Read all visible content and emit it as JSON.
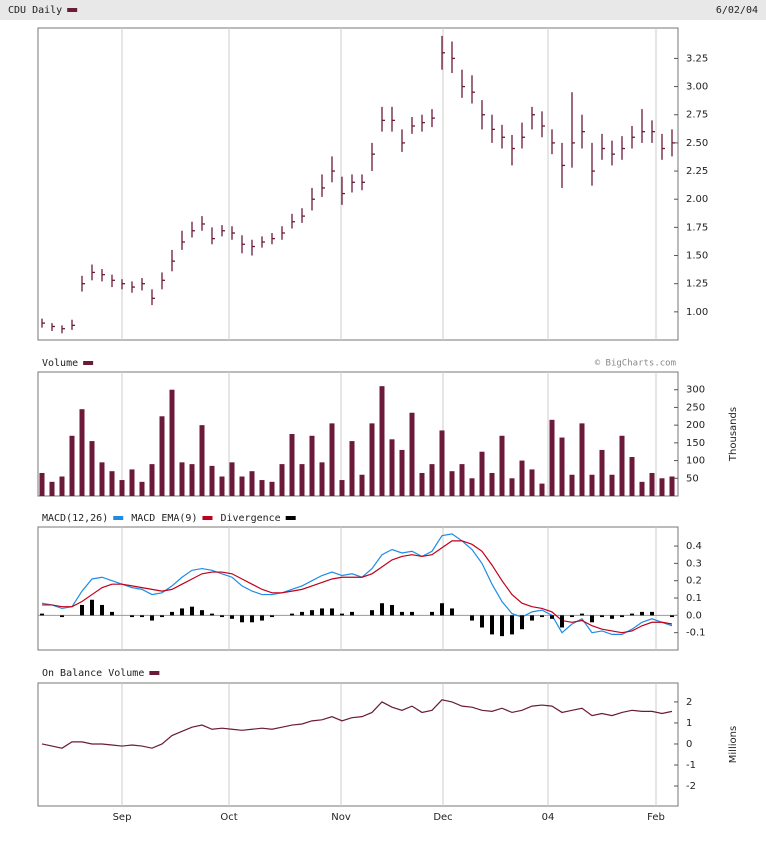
{
  "header": {
    "symbol": "CDU Daily",
    "date": "6/02/04"
  },
  "credit": "© BigCharts.com",
  "x_axis": {
    "xlim": [
      -0.4,
      63.6
    ],
    "xticks": [
      {
        "value": 8,
        "label": "Sep"
      },
      {
        "value": 18.7,
        "label": "Oct"
      },
      {
        "value": 29.9,
        "label": "Nov"
      },
      {
        "value": 40.1,
        "label": "Dec"
      },
      {
        "value": 50.6,
        "label": "04"
      },
      {
        "value": 61.4,
        "label": "Feb"
      }
    ]
  },
  "chart_data": [
    {
      "type": "ohlc",
      "series": [
        {
          "name": "CDU Daily",
          "color": "#6b1a3a",
          "high": [
            0.94,
            0.9,
            0.88,
            0.93,
            1.32,
            1.42,
            1.38,
            1.33,
            1.29,
            1.27,
            1.3,
            1.2,
            1.35,
            1.55,
            1.72,
            1.8,
            1.85,
            1.75,
            1.77,
            1.76,
            1.68,
            1.64,
            1.67,
            1.7,
            1.76,
            1.87,
            1.92,
            2.1,
            2.22,
            2.38,
            2.2,
            2.22,
            2.22,
            2.5,
            2.82,
            2.82,
            2.62,
            2.73,
            2.75,
            2.8,
            3.45,
            3.4,
            3.15,
            3.1,
            2.88,
            2.75,
            2.66,
            2.57,
            2.68,
            2.82,
            2.78,
            2.62,
            2.5,
            2.95,
            2.75,
            2.5,
            2.58,
            2.52,
            2.56,
            2.65,
            2.8,
            2.7,
            2.58,
            2.62
          ],
          "low": [
            0.86,
            0.83,
            0.81,
            0.84,
            1.18,
            1.28,
            1.27,
            1.22,
            1.2,
            1.17,
            1.19,
            1.06,
            1.2,
            1.36,
            1.55,
            1.66,
            1.72,
            1.6,
            1.67,
            1.64,
            1.52,
            1.5,
            1.57,
            1.6,
            1.64,
            1.74,
            1.79,
            1.9,
            2.02,
            2.15,
            1.95,
            2.06,
            2.08,
            2.25,
            2.6,
            2.6,
            2.42,
            2.58,
            2.6,
            2.64,
            3.15,
            3.12,
            2.9,
            2.85,
            2.62,
            2.5,
            2.45,
            2.3,
            2.45,
            2.62,
            2.55,
            2.4,
            2.1,
            2.28,
            2.45,
            2.12,
            2.35,
            2.3,
            2.35,
            2.45,
            2.5,
            2.5,
            2.35,
            2.38
          ],
          "close": [
            0.9,
            0.87,
            0.85,
            0.88,
            1.25,
            1.35,
            1.33,
            1.28,
            1.25,
            1.22,
            1.25,
            1.12,
            1.28,
            1.45,
            1.62,
            1.72,
            1.78,
            1.65,
            1.72,
            1.7,
            1.6,
            1.58,
            1.62,
            1.65,
            1.7,
            1.8,
            1.85,
            2,
            2.1,
            2.25,
            2.05,
            2.15,
            2.15,
            2.4,
            2.7,
            2.7,
            2.5,
            2.65,
            2.68,
            2.72,
            3.3,
            3.25,
            3,
            2.95,
            2.75,
            2.62,
            2.55,
            2.45,
            2.55,
            2.75,
            2.65,
            2.5,
            2.3,
            2.5,
            2.6,
            2.25,
            2.45,
            2.4,
            2.45,
            2.55,
            2.6,
            2.6,
            2.45,
            2.5
          ]
        }
      ],
      "ylim": [
        0.75,
        3.52
      ],
      "yticks": [
        {
          "value": 1,
          "label": "1.00"
        },
        1.25,
        {
          "value": 1.5,
          "label": "1.50"
        },
        1.75,
        {
          "value": 2,
          "label": "2.00"
        },
        2.25,
        {
          "value": 2.5,
          "label": "2.50"
        },
        2.75,
        {
          "value": 3,
          "label": "3.00"
        },
        3.25
      ]
    },
    {
      "type": "bar",
      "series": [
        {
          "name": "Volume",
          "color": "#6b1a3a",
          "values": [
            65,
            40,
            55,
            170,
            245,
            155,
            95,
            70,
            45,
            75,
            40,
            90,
            225,
            300,
            95,
            90,
            200,
            85,
            55,
            95,
            55,
            70,
            45,
            40,
            90,
            175,
            90,
            170,
            95,
            205,
            45,
            155,
            60,
            205,
            310,
            160,
            130,
            235,
            65,
            90,
            185,
            70,
            90,
            50,
            125,
            65,
            170,
            50,
            100,
            75,
            35,
            215,
            165,
            60,
            205,
            60,
            130,
            60,
            170,
            110,
            40,
            65,
            50,
            55
          ]
        }
      ],
      "ylim": [
        0,
        350
      ],
      "yticks": [
        50,
        100,
        150,
        200,
        250,
        300
      ],
      "ylabel": "Thousands"
    },
    {
      "type": "line",
      "series": [
        {
          "name": "MACD(12,26)",
          "color": "#1e8ce6",
          "values": [
            0.07,
            0.06,
            0.04,
            0.05,
            0.14,
            0.21,
            0.22,
            0.2,
            0.18,
            0.16,
            0.15,
            0.12,
            0.13,
            0.17,
            0.22,
            0.26,
            0.27,
            0.26,
            0.24,
            0.22,
            0.17,
            0.14,
            0.12,
            0.12,
            0.13,
            0.15,
            0.17,
            0.2,
            0.23,
            0.25,
            0.23,
            0.24,
            0.22,
            0.27,
            0.35,
            0.38,
            0.36,
            0.37,
            0.34,
            0.37,
            0.46,
            0.47,
            0.43,
            0.38,
            0.3,
            0.18,
            0.08,
            0.01,
            -0.01,
            0.02,
            0.03,
            0,
            -0.1,
            -0.05,
            -0.02,
            -0.1,
            -0.09,
            -0.11,
            -0.11,
            -0.08,
            -0.04,
            -0.02,
            -0.04,
            -0.06
          ]
        },
        {
          "name": "MACD EMA(9)",
          "color": "#c0001a",
          "values": [
            0.06,
            0.06,
            0.05,
            0.05,
            0.08,
            0.12,
            0.16,
            0.18,
            0.18,
            0.17,
            0.16,
            0.15,
            0.14,
            0.15,
            0.18,
            0.21,
            0.24,
            0.25,
            0.25,
            0.24,
            0.21,
            0.18,
            0.15,
            0.13,
            0.13,
            0.14,
            0.15,
            0.17,
            0.19,
            0.21,
            0.22,
            0.22,
            0.22,
            0.24,
            0.28,
            0.32,
            0.34,
            0.35,
            0.34,
            0.35,
            0.39,
            0.43,
            0.43,
            0.41,
            0.37,
            0.29,
            0.2,
            0.12,
            0.07,
            0.05,
            0.04,
            0.02,
            -0.03,
            -0.04,
            -0.03,
            -0.06,
            -0.08,
            -0.09,
            -0.1,
            -0.09,
            -0.06,
            -0.04,
            -0.04,
            -0.05
          ]
        },
        {
          "name": "Divergence",
          "color": "#000000",
          "type": "bar",
          "values": [
            0.01,
            0,
            -0.01,
            0,
            0.06,
            0.09,
            0.06,
            0.02,
            0,
            -0.01,
            -0.01,
            -0.03,
            -0.01,
            0.02,
            0.04,
            0.05,
            0.03,
            0.01,
            -0.01,
            -0.02,
            -0.04,
            -0.04,
            -0.03,
            -0.01,
            0,
            0.01,
            0.02,
            0.03,
            0.04,
            0.04,
            0.01,
            0.02,
            0,
            0.03,
            0.07,
            0.06,
            0.02,
            0.02,
            0,
            0.02,
            0.07,
            0.04,
            0,
            -0.03,
            -0.07,
            -0.11,
            -0.12,
            -0.11,
            -0.08,
            -0.03,
            -0.01,
            -0.02,
            -0.07,
            -0.01,
            0.01,
            -0.04,
            -0.01,
            -0.02,
            -0.01,
            0.01,
            0.02,
            0.02,
            0,
            -0.01
          ]
        }
      ],
      "ylim": [
        -0.2,
        0.51
      ],
      "yticks": [
        -0.1,
        {
          "value": 0,
          "label": "0.0"
        },
        0.1,
        0.2,
        0.3,
        0.4
      ]
    },
    {
      "type": "line",
      "series": [
        {
          "name": "On Balance Volume",
          "color": "#6b1a3a",
          "values": [
            0,
            -0.1,
            -0.2,
            0.1,
            0.1,
            0,
            0,
            -0.05,
            -0.1,
            -0.05,
            -0.1,
            -0.2,
            0,
            0.4,
            0.6,
            0.8,
            0.9,
            0.7,
            0.75,
            0.7,
            0.65,
            0.7,
            0.75,
            0.7,
            0.8,
            0.9,
            0.95,
            1.1,
            1.15,
            1.3,
            1.1,
            1.25,
            1.3,
            1.5,
            2,
            1.75,
            1.6,
            1.8,
            1.5,
            1.6,
            2.1,
            2,
            1.8,
            1.75,
            1.6,
            1.55,
            1.7,
            1.5,
            1.6,
            1.8,
            1.85,
            1.8,
            1.5,
            1.6,
            1.7,
            1.35,
            1.45,
            1.35,
            1.5,
            1.6,
            1.55,
            1.55,
            1.45,
            1.55
          ]
        }
      ],
      "ylim": [
        -2.95,
        2.9
      ],
      "yticks": [
        -2,
        -1,
        0,
        1,
        2
      ],
      "ylabel": "Millions"
    }
  ]
}
